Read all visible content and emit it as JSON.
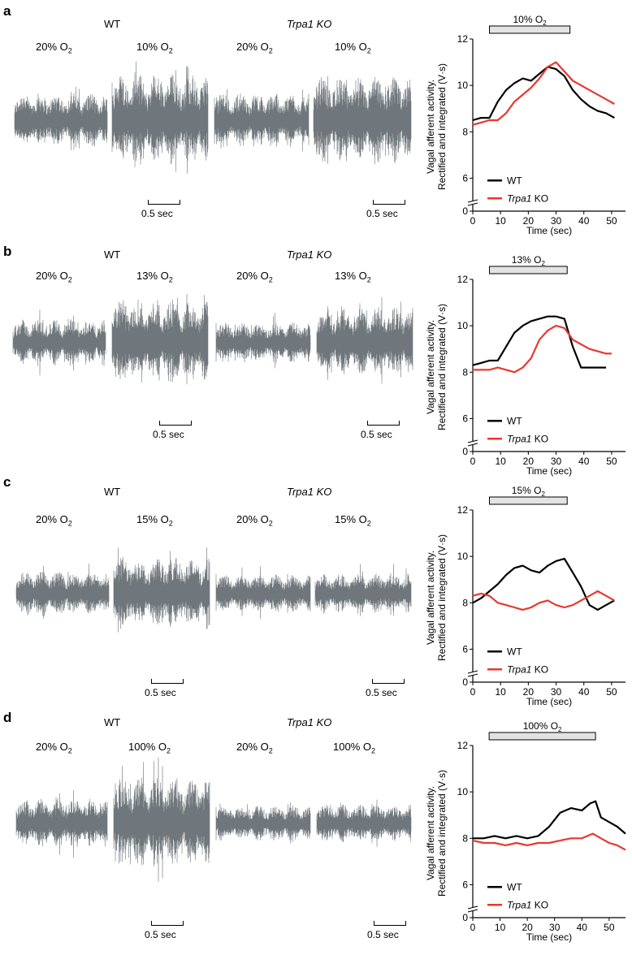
{
  "scale_bar_label": "0.5 sec",
  "trace_color": "#6f777c",
  "chart_data": [
    {
      "panel": "a",
      "type": "line",
      "groups": [
        "WT",
        "Trpa1 KO"
      ],
      "conditions": [
        "20% O",
        "10% O",
        "20% O",
        "10% O"
      ],
      "stimulus_label": "10% O",
      "stimulus_range": [
        6,
        35
      ],
      "ylabel_lines": [
        "Vagal afferent activity.",
        "Rectified and integrated (V·s)"
      ],
      "xlabel": "Time (sec)",
      "xlim": [
        0,
        55
      ],
      "ylim": [
        5,
        12
      ],
      "xticks": [
        0,
        10,
        20,
        30,
        40,
        50
      ],
      "yticks": [
        6,
        8,
        10,
        12
      ],
      "legend_position": "lower-left",
      "series": [
        {
          "name": "WT",
          "color": "#000000",
          "x": [
            0,
            3,
            6,
            9,
            12,
            15,
            18,
            21,
            24,
            27,
            30,
            33,
            36,
            39,
            42,
            45,
            48,
            51
          ],
          "y": [
            8.5,
            8.6,
            8.6,
            9.3,
            9.8,
            10.1,
            10.3,
            10.2,
            10.5,
            10.8,
            10.7,
            10.4,
            9.8,
            9.4,
            9.1,
            8.9,
            8.8,
            8.6
          ]
        },
        {
          "name": "Trpa1 KO",
          "color": "#e8382e",
          "x": [
            0,
            3,
            6,
            9,
            12,
            15,
            18,
            21,
            24,
            27,
            30,
            33,
            36,
            39,
            42,
            45,
            48,
            51
          ],
          "y": [
            8.3,
            8.4,
            8.5,
            8.5,
            8.8,
            9.3,
            9.6,
            9.9,
            10.3,
            10.8,
            11.0,
            10.6,
            10.2,
            10.0,
            9.8,
            9.6,
            9.4,
            9.2
          ]
        }
      ]
    },
    {
      "panel": "b",
      "type": "line",
      "groups": [
        "WT",
        "Trpa1 KO"
      ],
      "conditions": [
        "20% O",
        "13% O",
        "20% O",
        "13% O"
      ],
      "stimulus_label": "13% O",
      "stimulus_range": [
        6,
        34
      ],
      "ylabel_lines": [
        "Vagal afferent activity.",
        "Rectified and integrated (V·s)"
      ],
      "xlabel": "Time (sec)",
      "xlim": [
        0,
        55
      ],
      "ylim": [
        5,
        12
      ],
      "xticks": [
        0,
        10,
        20,
        30,
        40,
        50
      ],
      "yticks": [
        6,
        8,
        10,
        12
      ],
      "legend_position": "lower-left",
      "series": [
        {
          "name": "WT",
          "color": "#000000",
          "x": [
            0,
            3,
            6,
            9,
            12,
            15,
            18,
            21,
            24,
            27,
            30,
            33,
            36,
            39,
            42,
            45,
            48
          ],
          "y": [
            8.3,
            8.4,
            8.5,
            8.5,
            9.1,
            9.7,
            10.0,
            10.2,
            10.3,
            10.4,
            10.4,
            10.3,
            9.1,
            8.2,
            8.2,
            8.2,
            8.2
          ]
        },
        {
          "name": "Trpa1 KO",
          "color": "#e8382e",
          "x": [
            0,
            3,
            6,
            9,
            12,
            15,
            18,
            21,
            24,
            27,
            30,
            33,
            36,
            39,
            42,
            45,
            48,
            50
          ],
          "y": [
            8.1,
            8.1,
            8.1,
            8.2,
            8.1,
            8.0,
            8.2,
            8.6,
            9.4,
            9.8,
            10.0,
            9.9,
            9.4,
            9.2,
            9.0,
            8.9,
            8.8,
            8.8
          ]
        }
      ]
    },
    {
      "panel": "c",
      "type": "line",
      "groups": [
        "WT",
        "Trpa1 KO"
      ],
      "conditions": [
        "20% O",
        "15% O",
        "20% O",
        "15% O"
      ],
      "stimulus_label": "15% O",
      "stimulus_range": [
        6,
        34
      ],
      "ylabel_lines": [
        "Vagal afferent activity.",
        "Rectified and integrated (V·s)"
      ],
      "xlabel": "Time (sec)",
      "xlim": [
        0,
        55
      ],
      "ylim": [
        5,
        12
      ],
      "xticks": [
        0,
        10,
        20,
        30,
        40,
        50
      ],
      "yticks": [
        6,
        8,
        10,
        12
      ],
      "legend_position": "lower-left",
      "series": [
        {
          "name": "WT",
          "color": "#000000",
          "x": [
            0,
            3,
            6,
            9,
            12,
            15,
            18,
            21,
            24,
            27,
            30,
            33,
            36,
            39,
            42,
            45,
            48,
            51
          ],
          "y": [
            8.0,
            8.2,
            8.5,
            8.8,
            9.2,
            9.5,
            9.6,
            9.4,
            9.3,
            9.6,
            9.8,
            9.9,
            9.3,
            8.7,
            7.9,
            7.7,
            7.9,
            8.1
          ]
        },
        {
          "name": "Trpa1 KO",
          "color": "#e8382e",
          "x": [
            0,
            3,
            6,
            9,
            12,
            15,
            18,
            21,
            24,
            27,
            30,
            33,
            36,
            39,
            42,
            45,
            48,
            51
          ],
          "y": [
            8.3,
            8.4,
            8.3,
            8.0,
            7.9,
            7.8,
            7.7,
            7.8,
            8.0,
            8.1,
            7.9,
            7.8,
            7.9,
            8.1,
            8.3,
            8.5,
            8.3,
            8.1
          ]
        }
      ]
    },
    {
      "panel": "d",
      "type": "line",
      "groups": [
        "WT",
        "Trpa1 KO"
      ],
      "conditions": [
        "20% O",
        "100% O",
        "20% O",
        "100% O"
      ],
      "stimulus_label": "100% O",
      "stimulus_range": [
        6,
        45
      ],
      "ylabel_lines": [
        "Vagal afferent activity.",
        "Rectified and integrated (V·s)"
      ],
      "xlabel": "Time (sec)",
      "xlim": [
        0,
        56
      ],
      "ylim": [
        5,
        12
      ],
      "xticks": [
        0,
        10,
        20,
        30,
        40,
        50
      ],
      "yticks": [
        6,
        8,
        10,
        12
      ],
      "legend_position": "lower-left",
      "series": [
        {
          "name": "WT",
          "color": "#000000",
          "x": [
            0,
            4,
            8,
            12,
            16,
            20,
            24,
            28,
            32,
            36,
            40,
            43,
            45,
            47,
            50,
            53,
            56
          ],
          "y": [
            8.0,
            8.0,
            8.1,
            8.0,
            8.1,
            8.0,
            8.1,
            8.5,
            9.1,
            9.3,
            9.2,
            9.5,
            9.6,
            8.9,
            8.7,
            8.5,
            8.2
          ]
        },
        {
          "name": "Trpa1 KO",
          "color": "#e8382e",
          "x": [
            0,
            4,
            8,
            12,
            16,
            20,
            24,
            28,
            32,
            36,
            40,
            44,
            47,
            50,
            53,
            56
          ],
          "y": [
            7.9,
            7.8,
            7.8,
            7.7,
            7.8,
            7.7,
            7.8,
            7.8,
            7.9,
            8.0,
            8.0,
            8.2,
            8.0,
            7.8,
            7.7,
            7.5
          ]
        }
      ]
    }
  ]
}
